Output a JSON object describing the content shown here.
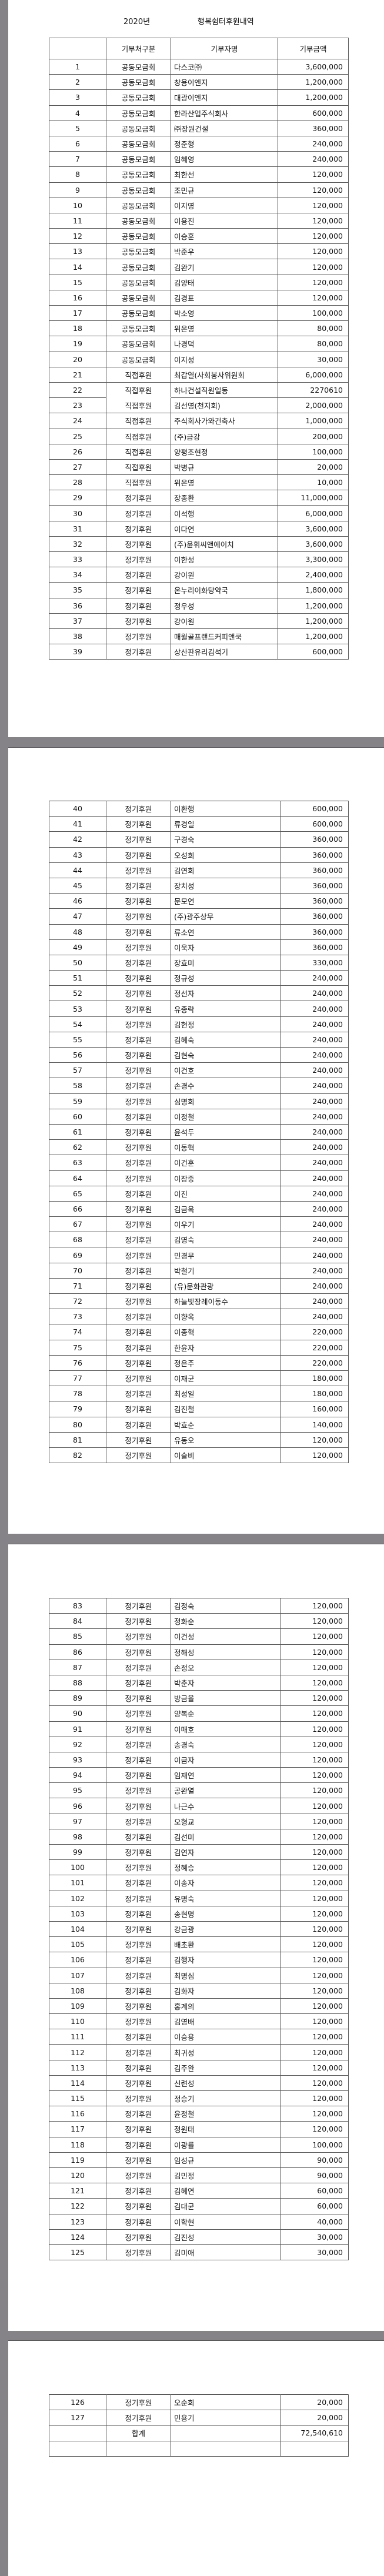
{
  "document": {
    "year": "2020년",
    "title": "행복쉼터후원내역",
    "columns": [
      "",
      "기부처구분",
      "기부자명",
      "기부금액"
    ],
    "pages": [
      {
        "rows": [
          [
            "1",
            "공동모금회",
            "다스코㈜",
            "3,600,000"
          ],
          [
            "2",
            "공동모금회",
            "창용이엔지",
            "1,200,000"
          ],
          [
            "3",
            "공동모금회",
            "대광이엔지",
            "1,200,000"
          ],
          [
            "4",
            "공동모금회",
            "한라산업주식회사",
            "600,000"
          ],
          [
            "5",
            "공동모금회",
            "㈜장원건설",
            "360,000"
          ],
          [
            "6",
            "공동모금회",
            "정준형",
            "240,000"
          ],
          [
            "7",
            "공동모금회",
            "임혜영",
            "240,000"
          ],
          [
            "8",
            "공동모금회",
            "최한선",
            "120,000"
          ],
          [
            "9",
            "공동모금회",
            "조민규",
            "120,000"
          ],
          [
            "10",
            "공동모금회",
            "이지영",
            "120,000"
          ],
          [
            "11",
            "공동모금회",
            "이용진",
            "120,000"
          ],
          [
            "12",
            "공동모금회",
            "이승훈",
            "120,000"
          ],
          [
            "13",
            "공동모금회",
            "박준우",
            "120,000"
          ],
          [
            "14",
            "공동모금회",
            "김완기",
            "120,000"
          ],
          [
            "15",
            "공동모금회",
            "김양태",
            "120,000"
          ],
          [
            "16",
            "공동모금회",
            "김경표",
            "120,000"
          ],
          [
            "17",
            "공동모금회",
            "박소영",
            "100,000"
          ],
          [
            "18",
            "공동모금회",
            "위은영",
            "80,000"
          ],
          [
            "19",
            "공동모금회",
            "나경덕",
            "80,000"
          ],
          [
            "20",
            "공동모금회",
            "이지성",
            "30,000"
          ],
          [
            "21",
            "직접후원",
            "최갑열(사회봉사위원회",
            "6,000,000"
          ],
          [
            "22",
            "직접후원",
            "하나건설직원일동",
            "2270610"
          ],
          [
            "23",
            "직접후원",
            "김선영(천지회)",
            "2,000,000"
          ],
          [
            "24",
            "직접후원",
            "주식회사가와건축사",
            "1,000,000"
          ],
          [
            "25",
            "직접후원",
            "(주)금강",
            "200,000"
          ],
          [
            "26",
            "직접후원",
            "양평조현정",
            "100,000"
          ],
          [
            "27",
            "직접후원",
            "박병규",
            "20,000"
          ],
          [
            "28",
            "직접후원",
            "위은영",
            "10,000"
          ],
          [
            "29",
            "정기후원",
            "장종환",
            "11,000,000"
          ],
          [
            "30",
            "정기후원",
            "이석행",
            "6,000,000"
          ],
          [
            "31",
            "정기후원",
            "이다연",
            "3,600,000"
          ],
          [
            "32",
            "정기후원",
            "(주)윤휘씨앤에이치",
            "3,600,000"
          ],
          [
            "33",
            "정기후원",
            "이한성",
            "3,300,000"
          ],
          [
            "34",
            "정기후원",
            "강이원",
            "2,400,000"
          ],
          [
            "35",
            "정기후원",
            "온누리이화당약국",
            "1,800,000"
          ],
          [
            "36",
            "정기후원",
            "정우성",
            "1,200,000"
          ],
          [
            "37",
            "정기후원",
            "강이원",
            "1,200,000"
          ],
          [
            "38",
            "정기후원",
            "매월골프랜드커피앤쿡",
            "1,200,000"
          ],
          [
            "39",
            "정기후원",
            "상산판유리김석기",
            "600,000"
          ]
        ]
      },
      {
        "rows": [
          [
            "40",
            "정기후원",
            "이환행",
            "600,000"
          ],
          [
            "41",
            "정기후원",
            "류경일",
            "600,000"
          ],
          [
            "42",
            "정기후원",
            "구경숙",
            "360,000"
          ],
          [
            "43",
            "정기후원",
            "오성희",
            "360,000"
          ],
          [
            "44",
            "정기후원",
            "김연희",
            "360,000"
          ],
          [
            "45",
            "정기후원",
            "장치성",
            "360,000"
          ],
          [
            "46",
            "정기후원",
            "문모연",
            "360,000"
          ],
          [
            "47",
            "정기후원",
            "(주)광주상무",
            "360,000"
          ],
          [
            "48",
            "정기후원",
            "류소연",
            "360,000"
          ],
          [
            "49",
            "정기후원",
            "이욱자",
            "360,000"
          ],
          [
            "50",
            "정기후원",
            "장효미",
            "330,000"
          ],
          [
            "51",
            "정기후원",
            "정규성",
            "240,000"
          ],
          [
            "52",
            "정기후원",
            "정선자",
            "240,000"
          ],
          [
            "53",
            "정기후원",
            "유종락",
            "240,000"
          ],
          [
            "54",
            "정기후원",
            "김현정",
            "240,000"
          ],
          [
            "55",
            "정기후원",
            "김혜숙",
            "240,000"
          ],
          [
            "56",
            "정기후원",
            "김현숙",
            "240,000"
          ],
          [
            "57",
            "정기후원",
            "이건호",
            "240,000"
          ],
          [
            "58",
            "정기후원",
            "손경수",
            "240,000"
          ],
          [
            "59",
            "정기후원",
            "심명희",
            "240,000"
          ],
          [
            "60",
            "정기후원",
            "이정철",
            "240,000"
          ],
          [
            "61",
            "정기후원",
            "윤석두",
            "240,000"
          ],
          [
            "62",
            "정기후원",
            "이동혁",
            "240,000"
          ],
          [
            "63",
            "정기후원",
            "이건훈",
            "240,000"
          ],
          [
            "64",
            "정기후원",
            "이장중",
            "240,000"
          ],
          [
            "65",
            "정기후원",
            "이진",
            "240,000"
          ],
          [
            "66",
            "정기후원",
            "김금옥",
            "240,000"
          ],
          [
            "67",
            "정기후원",
            "이우기",
            "240,000"
          ],
          [
            "68",
            "정기후원",
            "김영숙",
            "240,000"
          ],
          [
            "69",
            "정기후원",
            "민경무",
            "240,000"
          ],
          [
            "70",
            "정기후원",
            "박철기",
            "240,000"
          ],
          [
            "71",
            "정기후원",
            "(유)문화관광",
            "240,000"
          ],
          [
            "72",
            "정기후원",
            "하늘빛장례이동수",
            "240,000"
          ],
          [
            "73",
            "정기후원",
            "이향옥",
            "240,000"
          ],
          [
            "74",
            "정기후원",
            "이종혁",
            "220,000"
          ],
          [
            "75",
            "정기후원",
            "한윤자",
            "220,000"
          ],
          [
            "76",
            "정기후원",
            "정은주",
            "220,000"
          ],
          [
            "77",
            "정기후원",
            "이재균",
            "180,000"
          ],
          [
            "78",
            "정기후원",
            "최성일",
            "180,000"
          ],
          [
            "79",
            "정기후원",
            "김진철",
            "160,000"
          ],
          [
            "80",
            "정기후원",
            "박효순",
            "140,000"
          ],
          [
            "81",
            "정기후원",
            "유동오",
            "120,000"
          ],
          [
            "82",
            "정기후원",
            "이슬비",
            "120,000"
          ]
        ]
      },
      {
        "rows": [
          [
            "83",
            "정기후원",
            "김정숙",
            "120,000"
          ],
          [
            "84",
            "정기후원",
            "정화순",
            "120,000"
          ],
          [
            "85",
            "정기후원",
            "이건성",
            "120,000"
          ],
          [
            "86",
            "정기후원",
            "정해성",
            "120,000"
          ],
          [
            "87",
            "정기후원",
            "손정오",
            "120,000"
          ],
          [
            "88",
            "정기후원",
            "박춘자",
            "120,000"
          ],
          [
            "89",
            "정기후원",
            "방금율",
            "120,000"
          ],
          [
            "90",
            "정기후원",
            "양복순",
            "120,000"
          ],
          [
            "91",
            "정기후원",
            "이매호",
            "120,000"
          ],
          [
            "92",
            "정기후원",
            "송경숙",
            "120,000"
          ],
          [
            "93",
            "정기후원",
            "이금자",
            "120,000"
          ],
          [
            "94",
            "정기후원",
            "임재연",
            "120,000"
          ],
          [
            "95",
            "정기후원",
            "공완열",
            "120,000"
          ],
          [
            "96",
            "정기후원",
            "나근수",
            "120,000"
          ],
          [
            "97",
            "정기후원",
            "오형교",
            "120,000"
          ],
          [
            "98",
            "정기후원",
            "김선미",
            "120,000"
          ],
          [
            "99",
            "정기후원",
            "김연자",
            "120,000"
          ],
          [
            "100",
            "정기후원",
            "정혜승",
            "120,000"
          ],
          [
            "101",
            "정기후원",
            "이송자",
            "120,000"
          ],
          [
            "102",
            "정기후원",
            "유명숙",
            "120,000"
          ],
          [
            "103",
            "정기후원",
            "송현명",
            "120,000"
          ],
          [
            "104",
            "정기후원",
            "강금광",
            "120,000"
          ],
          [
            "105",
            "정기후원",
            "배초환",
            "120,000"
          ],
          [
            "106",
            "정기후원",
            "김행자",
            "120,000"
          ],
          [
            "107",
            "정기후원",
            "최명심",
            "120,000"
          ],
          [
            "108",
            "정기후원",
            "김화자",
            "120,000"
          ],
          [
            "109",
            "정기후원",
            "홍계의",
            "120,000"
          ],
          [
            "110",
            "정기후원",
            "김영배",
            "120,000"
          ],
          [
            "111",
            "정기후원",
            "이승용",
            "120,000"
          ],
          [
            "112",
            "정기후원",
            "최귀성",
            "120,000"
          ],
          [
            "113",
            "정기후원",
            "김주완",
            "120,000"
          ],
          [
            "114",
            "정기후원",
            "신련성",
            "120,000"
          ],
          [
            "115",
            "정기후원",
            "정승기",
            "120,000"
          ],
          [
            "116",
            "정기후원",
            "윤정철",
            "120,000"
          ],
          [
            "117",
            "정기후원",
            "정원태",
            "120,000"
          ],
          [
            "118",
            "정기후원",
            "이광률",
            "100,000"
          ],
          [
            "119",
            "정기후원",
            "임성규",
            "90,000"
          ],
          [
            "120",
            "정기후원",
            "김민정",
            "90,000"
          ],
          [
            "121",
            "정기후원",
            "김혜연",
            "60,000"
          ],
          [
            "122",
            "정기후원",
            "김대균",
            "60,000"
          ],
          [
            "123",
            "정기후원",
            "이학현",
            "40,000"
          ],
          [
            "124",
            "정기후원",
            "김진성",
            "30,000"
          ],
          [
            "125",
            "정기후원",
            "김미애",
            "30,000"
          ]
        ]
      },
      {
        "rows": [
          [
            "126",
            "정기후원",
            "오순희",
            "20,000"
          ],
          [
            "127",
            "정기후원",
            "민용기",
            "20,000"
          ],
          [
            "",
            "합계",
            "",
            "72,540,610"
          ],
          [
            "",
            "",
            "",
            ""
          ]
        ]
      }
    ]
  }
}
